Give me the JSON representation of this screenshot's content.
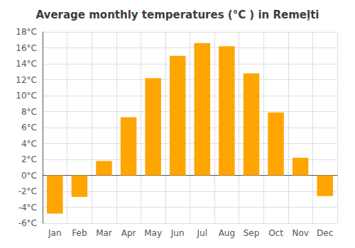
{
  "chart_data": {
    "type": "bar",
    "title": "Average monthly temperatures (°C ) in Remeļti",
    "categories": [
      "Jan",
      "Feb",
      "Mar",
      "Apr",
      "May",
      "Jun",
      "Jul",
      "Aug",
      "Sep",
      "Oct",
      "Nov",
      "Dec"
    ],
    "values": [
      -4.8,
      -2.7,
      1.8,
      7.3,
      12.2,
      15.0,
      16.6,
      16.2,
      12.8,
      7.9,
      2.2,
      -2.6
    ],
    "color": "#FFA500",
    "ylim": [
      -6,
      18
    ],
    "yticks": [
      {
        "value": -6,
        "label": "-6°C"
      },
      {
        "value": -4,
        "label": "-4°C"
      },
      {
        "value": -2,
        "label": "-2°C"
      },
      {
        "value": 0,
        "label": "0°C"
      },
      {
        "value": 2,
        "label": "2°C"
      },
      {
        "value": 4,
        "label": "4°C"
      },
      {
        "value": 6,
        "label": "6°C"
      },
      {
        "value": 8,
        "label": "8°C"
      },
      {
        "value": 10,
        "label": "10°C"
      },
      {
        "value": 12,
        "label": "12°C"
      },
      {
        "value": 14,
        "label": "14°C"
      },
      {
        "value": 16,
        "label": "16°C"
      },
      {
        "value": 18,
        "label": "18°C"
      }
    ],
    "grid": true
  }
}
